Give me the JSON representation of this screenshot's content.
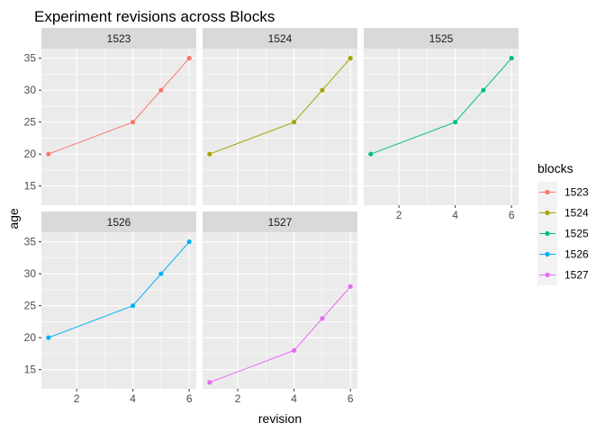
{
  "chart_data": {
    "type": "line",
    "title": "Experiment revisions across Blocks",
    "xlabel": "revision",
    "ylabel": "age",
    "xlim": [
      0.75,
      6.25
    ],
    "ylim": [
      12,
      36.5
    ],
    "x_ticks": [
      2,
      4,
      6
    ],
    "y_ticks": [
      15,
      20,
      25,
      30,
      35
    ],
    "grid": true,
    "facet_layout": {
      "rows": 2,
      "cols": 3
    },
    "legend": {
      "title": "blocks",
      "placement": "right"
    },
    "series": [
      {
        "name": "1523",
        "color": "#F8766D",
        "x": [
          1,
          4,
          5,
          6
        ],
        "y": [
          20,
          25,
          30,
          35
        ]
      },
      {
        "name": "1524",
        "color": "#A3A500",
        "x": [
          1,
          4,
          5,
          6
        ],
        "y": [
          20,
          25,
          30,
          35
        ]
      },
      {
        "name": "1525",
        "color": "#00BF7D",
        "x": [
          1,
          4,
          5,
          6
        ],
        "y": [
          20,
          25,
          30,
          35
        ]
      },
      {
        "name": "1526",
        "color": "#00B0F6",
        "x": [
          1,
          4,
          5,
          6
        ],
        "y": [
          20,
          25,
          30,
          35
        ]
      },
      {
        "name": "1527",
        "color": "#E76BF3",
        "x": [
          1,
          4,
          5,
          6
        ],
        "y": [
          13,
          18,
          23,
          28
        ]
      }
    ]
  }
}
